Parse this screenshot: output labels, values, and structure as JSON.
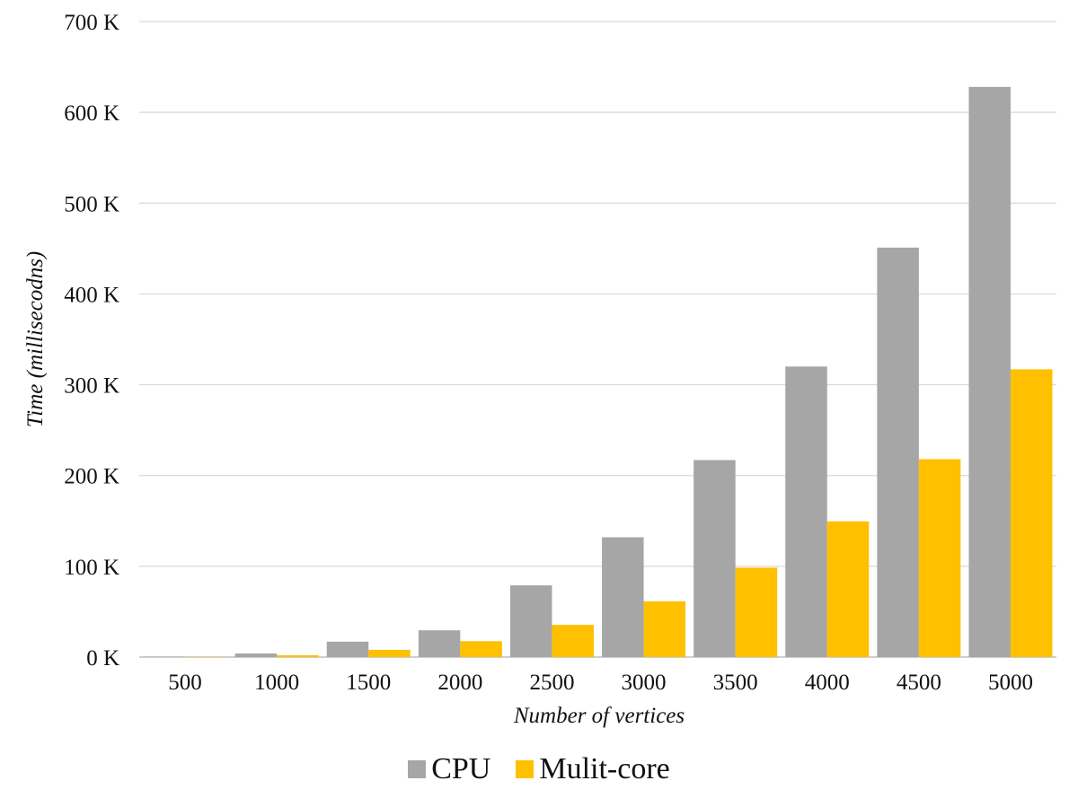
{
  "chart_data": {
    "type": "bar",
    "title": "",
    "xlabel": "Number of vertices",
    "ylabel": "Time (millisecodns)",
    "categories": [
      "500",
      "1000",
      "1500",
      "2000",
      "2500",
      "3000",
      "3500",
      "4000",
      "4500",
      "5000"
    ],
    "series": [
      {
        "name": "CPU",
        "color": "#a6a6a6",
        "values": [
          500,
          4000,
          17000,
          29500,
          79000,
          132000,
          217000,
          320000,
          451000,
          628000
        ]
      },
      {
        "name": "Mulit-core",
        "color": "#ffc000",
        "values": [
          300,
          2000,
          8000,
          17500,
          35500,
          61500,
          98500,
          149500,
          218000,
          317000
        ]
      }
    ],
    "ylim": [
      0,
      700000
    ],
    "yticks": [
      {
        "value": 0,
        "label": "0 K"
      },
      {
        "value": 100000,
        "label": "100 K"
      },
      {
        "value": 200000,
        "label": "200 K"
      },
      {
        "value": 300000,
        "label": "300 K"
      },
      {
        "value": 400000,
        "label": "400 K"
      },
      {
        "value": 500000,
        "label": "500 K"
      },
      {
        "value": 600000,
        "label": "600 K"
      },
      {
        "value": 700000,
        "label": "700 K"
      }
    ],
    "grid": true,
    "legend_position": "bottom"
  }
}
